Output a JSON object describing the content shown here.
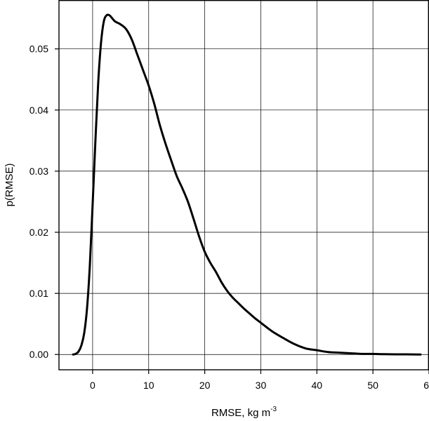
{
  "chart_data": {
    "type": "line",
    "xlabel": "RMSE, kg m",
    "xlabel_superscript": "-3",
    "ylabel": "p(RMSE)",
    "xlim": [
      -6,
      60
    ],
    "ylim": [
      -0.0025,
      0.058
    ],
    "x_ticks": [
      0,
      10,
      20,
      30,
      40,
      50,
      60
    ],
    "y_ticks": [
      0.0,
      0.01,
      0.02,
      0.03,
      0.04,
      0.05
    ],
    "x_tick_labels": [
      "0",
      "10",
      "20",
      "30",
      "40",
      "50",
      "60"
    ],
    "y_tick_labels": [
      "0.00",
      "0.01",
      "0.02",
      "0.03",
      "0.04",
      "0.05"
    ],
    "grid": true,
    "series": [
      {
        "x": [
          -3.5,
          -3,
          -2.5,
          -2,
          -1.5,
          -1,
          -0.5,
          0,
          0.5,
          1,
          1.5,
          2,
          2.5,
          3,
          3.5,
          4,
          5,
          6,
          7,
          8,
          9,
          10,
          11,
          12,
          13,
          14,
          15,
          16,
          17,
          18,
          19,
          20,
          21,
          22,
          23,
          24,
          25,
          26,
          27,
          28,
          29,
          30,
          32,
          34,
          36,
          38,
          40,
          42,
          44,
          46,
          48,
          50,
          52,
          54,
          56,
          58.5
        ],
        "y": [
          0.0,
          0.0001,
          0.0005,
          0.0015,
          0.0035,
          0.0075,
          0.0145,
          0.0245,
          0.035,
          0.0445,
          0.051,
          0.0545,
          0.0555,
          0.0555,
          0.055,
          0.0545,
          0.054,
          0.0532,
          0.0515,
          0.049,
          0.0465,
          0.044,
          0.041,
          0.0375,
          0.0345,
          0.0318,
          0.0292,
          0.0272,
          0.025,
          0.0222,
          0.0193,
          0.0168,
          0.015,
          0.0135,
          0.0118,
          0.0104,
          0.0093,
          0.0084,
          0.0075,
          0.0067,
          0.0059,
          0.0052,
          0.0038,
          0.0027,
          0.0017,
          0.001,
          0.0007,
          0.0004,
          0.0003,
          0.0002,
          0.0001,
          0.0001,
          5e-05,
          3e-05,
          2e-05,
          0.0
        ]
      }
    ]
  }
}
